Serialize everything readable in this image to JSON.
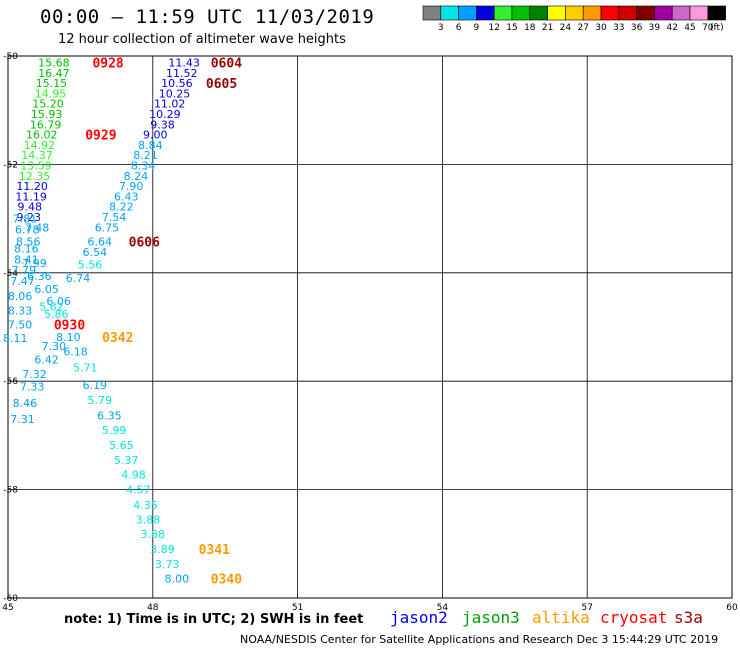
{
  "header": {
    "title": "00:00 – 11:59 UTC 11/03/2019",
    "subtitle": "12 hour collection of altimeter wave heights"
  },
  "footer": {
    "note": "note: 1) Time is in UTC; 2) SWH is in feet",
    "credit": "NOAA/NESDIS Center for Satellite Applications and Research    Dec  3 15:44:29 UTC 2019"
  },
  "satellites": [
    {
      "name": "jason2",
      "color": "#0000ff"
    },
    {
      "name": "jason3",
      "color": "#00a000"
    },
    {
      "name": "altika",
      "color": "#ff9900"
    },
    {
      "name": "cryosat",
      "color": "#ff0000"
    },
    {
      "name": "s3a",
      "color": "#990000"
    }
  ],
  "legend": {
    "unit": "(ft)",
    "bins": [
      {
        "label": "3",
        "color": "#808080"
      },
      {
        "label": "6",
        "color": "#00e6e6"
      },
      {
        "label": "9",
        "color": "#00a0ff"
      },
      {
        "label": "12",
        "color": "#0000e0"
      },
      {
        "label": "15",
        "color": "#33ee33"
      },
      {
        "label": "18",
        "color": "#00c000"
      },
      {
        "label": "21",
        "color": "#008000"
      },
      {
        "label": "24",
        "color": "#ffff00"
      },
      {
        "label": "27",
        "color": "#ffcc00"
      },
      {
        "label": "30",
        "color": "#ff9900"
      },
      {
        "label": "33",
        "color": "#ff0000"
      },
      {
        "label": "36",
        "color": "#cc0000"
      },
      {
        "label": "39",
        "color": "#800000"
      },
      {
        "label": "42",
        "color": "#a000a0"
      },
      {
        "label": "45",
        "color": "#cc66cc"
      },
      {
        "label": "70",
        "color": "#ff99dd"
      },
      {
        "label": "",
        "color": "#000000"
      }
    ]
  },
  "chart_data": {
    "type": "scatter",
    "xlim": [
      45,
      60
    ],
    "ylim": [
      -60,
      -50
    ],
    "xticks": [
      "45",
      "48",
      "51",
      "54",
      "57",
      "60"
    ],
    "yticks": [
      "-50",
      "-52",
      "-54",
      "-56",
      "-58",
      "-60"
    ],
    "grid": true,
    "value_color_thresholds": [
      3,
      6,
      9,
      12,
      15,
      18,
      21
    ],
    "value_colors": [
      "#808080",
      "#00e6e6",
      "#00a0ff",
      "#0000e0",
      "#33ee33",
      "#00c000",
      "#008000",
      "#ffff00"
    ],
    "points": [
      {
        "x": 45.95,
        "y": -50.12,
        "v": "15.68"
      },
      {
        "x": 45.95,
        "y": -50.31,
        "v": "16.47"
      },
      {
        "x": 45.9,
        "y": -50.5,
        "v": "15.15"
      },
      {
        "x": 45.88,
        "y": -50.69,
        "v": "14.95"
      },
      {
        "x": 45.83,
        "y": -50.88,
        "v": "15.20"
      },
      {
        "x": 45.8,
        "y": -51.07,
        "v": "15.93"
      },
      {
        "x": 45.78,
        "y": -51.26,
        "v": "16.79"
      },
      {
        "x": 45.7,
        "y": -51.45,
        "v": "16.02"
      },
      {
        "x": 45.65,
        "y": -51.64,
        "v": "14.92"
      },
      {
        "x": 45.6,
        "y": -51.83,
        "v": "14.37"
      },
      {
        "x": 45.58,
        "y": -52.02,
        "v": "13.59"
      },
      {
        "x": 45.55,
        "y": -52.21,
        "v": "12.35"
      },
      {
        "x": 45.5,
        "y": -52.4,
        "v": "11.20"
      },
      {
        "x": 45.48,
        "y": -52.59,
        "v": "11.19"
      },
      {
        "x": 45.45,
        "y": -52.78,
        "v": "9.48"
      },
      {
        "x": 45.43,
        "y": -52.97,
        "v": "9.23"
      },
      {
        "x": 45.35,
        "y": -53.0,
        "v": "7.81"
      },
      {
        "x": 45.6,
        "y": -53.16,
        "v": "7.48"
      },
      {
        "x": 45.4,
        "y": -53.2,
        "v": "6.78"
      },
      {
        "x": 45.42,
        "y": -53.42,
        "v": "8.56"
      },
      {
        "x": 45.38,
        "y": -53.55,
        "v": "8.16"
      },
      {
        "x": 45.38,
        "y": -53.75,
        "v": "8.41"
      },
      {
        "x": 45.55,
        "y": -53.82,
        "v": "7.99"
      },
      {
        "x": 45.33,
        "y": -53.95,
        "v": "7.79"
      },
      {
        "x": 45.65,
        "y": -54.06,
        "v": "6.36"
      },
      {
        "x": 45.3,
        "y": -54.15,
        "v": "7.47"
      },
      {
        "x": 45.8,
        "y": -54.3,
        "v": "6.05"
      },
      {
        "x": 45.25,
        "y": -54.43,
        "v": "8.06"
      },
      {
        "x": 46.05,
        "y": -54.52,
        "v": "6.06"
      },
      {
        "x": 45.9,
        "y": -54.62,
        "v": "5.62"
      },
      {
        "x": 45.25,
        "y": -54.7,
        "v": "8.33"
      },
      {
        "x": 46.0,
        "y": -54.76,
        "v": "5.86"
      },
      {
        "x": 45.25,
        "y": -54.95,
        "v": "7.50"
      },
      {
        "x": 46.25,
        "y": -55.18,
        "v": "8.10"
      },
      {
        "x": 45.15,
        "y": -55.2,
        "v": "8.11"
      },
      {
        "x": 45.95,
        "y": -55.35,
        "v": "7.30"
      },
      {
        "x": 46.4,
        "y": -55.45,
        "v": "6.18"
      },
      {
        "x": 45.8,
        "y": -55.6,
        "v": "6.42"
      },
      {
        "x": 46.6,
        "y": -55.75,
        "v": "5.71"
      },
      {
        "x": 45.55,
        "y": -55.87,
        "v": "7.32"
      },
      {
        "x": 46.8,
        "y": -56.07,
        "v": "6.19"
      },
      {
        "x": 45.5,
        "y": -56.1,
        "v": "7.33"
      },
      {
        "x": 46.9,
        "y": -56.35,
        "v": "5.79"
      },
      {
        "x": 45.35,
        "y": -56.4,
        "v": "8.46"
      },
      {
        "x": 47.1,
        "y": -56.63,
        "v": "6.35"
      },
      {
        "x": 45.3,
        "y": -56.7,
        "v": "7.31"
      },
      {
        "x": 47.2,
        "y": -56.9,
        "v": "5.99"
      },
      {
        "x": 47.35,
        "y": -57.18,
        "v": "5.65"
      },
      {
        "x": 47.45,
        "y": -57.45,
        "v": "5.37"
      },
      {
        "x": 47.6,
        "y": -57.72,
        "v": "4.98"
      },
      {
        "x": 47.7,
        "y": -58.0,
        "v": "4.57"
      },
      {
        "x": 47.85,
        "y": -58.28,
        "v": "4.35"
      },
      {
        "x": 47.9,
        "y": -58.55,
        "v": "3.88"
      },
      {
        "x": 48.0,
        "y": -58.82,
        "v": "3.88"
      },
      {
        "x": 48.2,
        "y": -59.1,
        "v": "3.89"
      },
      {
        "x": 48.3,
        "y": -59.37,
        "v": "3.73"
      },
      {
        "x": 48.5,
        "y": -59.64,
        "v": "8.00"
      },
      {
        "x": 48.65,
        "y": -50.12,
        "v": "11.43"
      },
      {
        "x": 48.6,
        "y": -50.31,
        "v": "11.52"
      },
      {
        "x": 48.5,
        "y": -50.5,
        "v": "10.56"
      },
      {
        "x": 48.45,
        "y": -50.69,
        "v": "10.25"
      },
      {
        "x": 48.35,
        "y": -50.88,
        "v": "11.02"
      },
      {
        "x": 48.25,
        "y": -51.07,
        "v": "10.29"
      },
      {
        "x": 48.2,
        "y": -51.26,
        "v": "9.38"
      },
      {
        "x": 48.05,
        "y": -51.45,
        "v": "9.00"
      },
      {
        "x": 47.95,
        "y": -51.64,
        "v": "8.84"
      },
      {
        "x": 47.85,
        "y": -51.83,
        "v": "8.21"
      },
      {
        "x": 47.8,
        "y": -52.02,
        "v": "8.34"
      },
      {
        "x": 47.65,
        "y": -52.21,
        "v": "8.24"
      },
      {
        "x": 47.55,
        "y": -52.4,
        "v": "7.90"
      },
      {
        "x": 47.45,
        "y": -52.59,
        "v": "6.43"
      },
      {
        "x": 47.35,
        "y": -52.78,
        "v": "8.22"
      },
      {
        "x": 47.2,
        "y": -52.97,
        "v": "7.54"
      },
      {
        "x": 47.05,
        "y": -53.16,
        "v": "6.75"
      },
      {
        "x": 46.9,
        "y": -53.42,
        "v": "6.64"
      },
      {
        "x": 46.8,
        "y": -53.62,
        "v": "6.54"
      },
      {
        "x": 46.7,
        "y": -53.85,
        "v": "5.56"
      },
      {
        "x": 46.45,
        "y": -54.1,
        "v": "6.74"
      }
    ],
    "time_labels": [
      {
        "x": 46.75,
        "y": -50.12,
        "text": "0928",
        "sat": "cryosat"
      },
      {
        "x": 46.6,
        "y": -51.45,
        "text": "0929",
        "sat": "cryosat"
      },
      {
        "x": 45.95,
        "y": -54.95,
        "text": "0930",
        "sat": "cryosat"
      },
      {
        "x": 49.2,
        "y": -50.12,
        "text": "0604",
        "sat": "s3a"
      },
      {
        "x": 49.1,
        "y": -50.5,
        "text": "0605",
        "sat": "s3a"
      },
      {
        "x": 47.5,
        "y": -53.42,
        "text": "0606",
        "sat": "s3a"
      },
      {
        "x": 46.95,
        "y": -55.18,
        "text": "0342",
        "sat": "altika"
      },
      {
        "x": 48.95,
        "y": -59.1,
        "text": "0341",
        "sat": "altika"
      },
      {
        "x": 49.2,
        "y": -59.64,
        "text": "0340",
        "sat": "altika"
      }
    ]
  }
}
